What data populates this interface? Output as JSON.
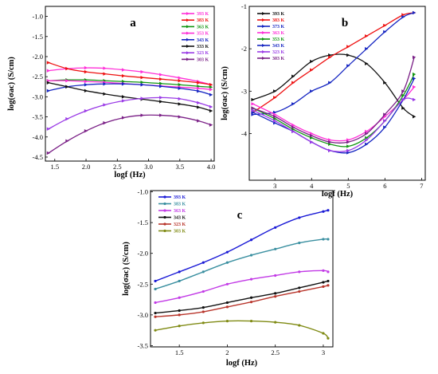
{
  "chart_data": [
    {
      "type": "line",
      "panel_label": "a",
      "xlabel": "logf (Hz)",
      "ylabel": "log(σac) (S/cm)",
      "xlim": [
        1.35,
        4.05
      ],
      "ylim": [
        -4.6,
        -0.75
      ],
      "xticks": [
        "1.5",
        "2.0",
        "2.5",
        "3.0",
        "3.5",
        "4.0"
      ],
      "yticks": [
        "-1.0",
        "-1.5",
        "-2.0",
        "-2.5",
        "-3.0",
        "-3.5",
        "-4.0",
        "-4.5"
      ],
      "legend_position": "top-right",
      "x": [
        1.4,
        1.7,
        2.0,
        2.3,
        2.6,
        2.9,
        3.2,
        3.5,
        3.8,
        4.0
      ],
      "series": [
        {
          "name": "393 K",
          "color": "#ff2fd8",
          "values": [
            -2.35,
            -2.3,
            -2.28,
            -2.29,
            -2.33,
            -2.38,
            -2.45,
            -2.53,
            -2.62,
            -2.7
          ]
        },
        {
          "name": "383 K",
          "color": "#ee1111",
          "values": [
            -2.15,
            -2.3,
            -2.38,
            -2.43,
            -2.48,
            -2.52,
            -2.56,
            -2.6,
            -2.65,
            -2.7
          ]
        },
        {
          "name": "363 K",
          "color": "#129612",
          "values": [
            -2.6,
            -2.58,
            -2.58,
            -2.6,
            -2.62,
            -2.64,
            -2.67,
            -2.7,
            -2.74,
            -2.76
          ]
        },
        {
          "name": "353 K",
          "color": "#ff2fd8",
          "values": [
            -2.6,
            -2.6,
            -2.62,
            -2.64,
            -2.67,
            -2.7,
            -2.73,
            -2.76,
            -2.79,
            -2.82
          ]
        },
        {
          "name": "343 K",
          "color": "#1626c2",
          "values": [
            -2.85,
            -2.75,
            -2.7,
            -2.68,
            -2.68,
            -2.7,
            -2.74,
            -2.79,
            -2.86,
            -2.95
          ]
        },
        {
          "name": "333 K",
          "color": "#111111",
          "values": [
            -2.65,
            -2.75,
            -2.85,
            -2.93,
            -3.0,
            -3.06,
            -3.12,
            -3.18,
            -3.26,
            -3.35
          ]
        },
        {
          "name": "323 K",
          "color": "#9a3ae6",
          "values": [
            -3.8,
            -3.55,
            -3.35,
            -3.2,
            -3.1,
            -3.04,
            -3.02,
            -3.05,
            -3.15,
            -3.25
          ]
        },
        {
          "name": "303 K",
          "color": "#7a1f86",
          "values": [
            -4.4,
            -4.1,
            -3.85,
            -3.65,
            -3.52,
            -3.46,
            -3.46,
            -3.5,
            -3.6,
            -3.7
          ]
        }
      ]
    },
    {
      "type": "line",
      "panel_label": "b",
      "xlabel": "logf (Hz)",
      "ylabel": "log(σac) (S/cm)",
      "xlim": [
        2.3,
        7.1
      ],
      "ylim": [
        -5.1,
        -1.0
      ],
      "xticks": [
        "3",
        "4",
        "5",
        "6",
        "7"
      ],
      "yticks": [
        "-1",
        "-2",
        "-3",
        "-4"
      ],
      "legend_position": "top-left",
      "x": [
        2.4,
        3.0,
        3.5,
        4.0,
        4.5,
        5.0,
        5.5,
        6.0,
        6.5,
        6.8
      ],
      "series": [
        {
          "name": "393 K",
          "color": "#111111",
          "values": [
            -3.2,
            -3.0,
            -2.65,
            -2.3,
            -2.15,
            -2.15,
            -2.35,
            -2.8,
            -3.4,
            -3.6
          ]
        },
        {
          "name": "383 K",
          "color": "#ee1111",
          "values": [
            -3.5,
            -3.15,
            -2.8,
            -2.5,
            -2.2,
            -1.95,
            -1.7,
            -1.45,
            -1.2,
            -1.15
          ]
        },
        {
          "name": "373 K",
          "color": "#1626c2",
          "values": [
            -3.55,
            -3.5,
            -3.3,
            -3.0,
            -2.8,
            -2.4,
            -2.0,
            -1.6,
            -1.25,
            -1.15
          ]
        },
        {
          "name": "363 K",
          "color": "#ff2fd8",
          "values": [
            -3.3,
            -3.55,
            -3.8,
            -4.0,
            -4.15,
            -4.15,
            -3.95,
            -3.6,
            -3.2,
            -2.9
          ]
        },
        {
          "name": "353 K",
          "color": "#129612",
          "values": [
            -3.4,
            -3.65,
            -3.9,
            -4.1,
            -4.25,
            -4.3,
            -4.1,
            -3.7,
            -3.1,
            -2.6
          ]
        },
        {
          "name": "343 K",
          "color": "#1626c2",
          "values": [
            -3.5,
            -3.75,
            -3.95,
            -4.2,
            -4.4,
            -4.45,
            -4.25,
            -3.85,
            -3.2,
            -2.7
          ]
        },
        {
          "name": "323 K",
          "color": "#9a3ae6",
          "values": [
            -3.45,
            -3.7,
            -3.95,
            -4.2,
            -4.4,
            -4.4,
            -4.15,
            -3.7,
            -3.2,
            -3.2
          ]
        },
        {
          "name": "303 K",
          "color": "#7a1f86",
          "values": [
            -3.4,
            -3.6,
            -3.85,
            -4.05,
            -4.2,
            -4.2,
            -4.0,
            -3.55,
            -3.0,
            -2.2
          ]
        }
      ]
    },
    {
      "type": "line",
      "panel_label": "c",
      "xlabel": "logf (Hz)",
      "ylabel": "log(σac) (S/cm)",
      "xlim": [
        1.2,
        3.1
      ],
      "ylim": [
        -3.52,
        -0.98
      ],
      "xticks": [
        "1.5",
        "2",
        "2.5",
        "3"
      ],
      "yticks": [
        "-1.0",
        "-1.5",
        "-2.0",
        "-2.5",
        "-3.0",
        "-3.5"
      ],
      "legend_position": "top-left",
      "x": [
        1.25,
        1.5,
        1.75,
        2.0,
        2.25,
        2.5,
        2.75,
        3.0,
        3.05
      ],
      "series": [
        {
          "name": "393 K",
          "color": "#1a1ad6",
          "values": [
            -2.45,
            -2.3,
            -2.15,
            -1.98,
            -1.78,
            -1.58,
            -1.42,
            -1.32,
            -1.3
          ]
        },
        {
          "name": "383 K",
          "color": "#3a8fa0",
          "values": [
            -2.58,
            -2.45,
            -2.3,
            -2.15,
            -2.03,
            -1.93,
            -1.83,
            -1.77,
            -1.77
          ]
        },
        {
          "name": "363 K",
          "color": "#c23ae6",
          "values": [
            -2.8,
            -2.72,
            -2.62,
            -2.5,
            -2.42,
            -2.36,
            -2.3,
            -2.28,
            -2.3
          ]
        },
        {
          "name": "343 K",
          "color": "#111111",
          "values": [
            -2.97,
            -2.93,
            -2.88,
            -2.8,
            -2.72,
            -2.65,
            -2.56,
            -2.47,
            -2.45
          ]
        },
        {
          "name": "323 K",
          "color": "#b8342a",
          "values": [
            -3.03,
            -3.0,
            -2.95,
            -2.87,
            -2.79,
            -2.7,
            -2.62,
            -2.54,
            -2.52
          ]
        },
        {
          "name": "303 K",
          "color": "#7f8a13",
          "values": [
            -3.25,
            -3.18,
            -3.13,
            -3.1,
            -3.1,
            -3.12,
            -3.17,
            -3.3,
            -3.38
          ]
        }
      ]
    }
  ]
}
